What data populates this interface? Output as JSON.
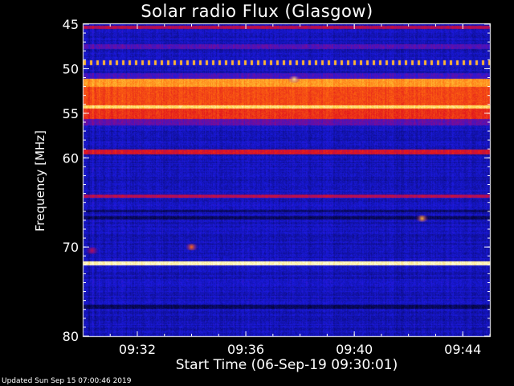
{
  "page": {
    "title": "Solar radio Flux (Glasgow)",
    "footer": "Updated Sun Sep 15 07:00:46 2019"
  },
  "chart_data": {
    "type": "heatmap",
    "title": "Solar radio Flux (Glasgow)",
    "xlabel": "Start Time (06-Sep-19 09:30:01)",
    "ylabel": "Frequency [MHz]",
    "x_unit": "time (HH:MM)",
    "xlim": [
      "09:30:01",
      "09:45:00"
    ],
    "ylim": [
      45,
      80
    ],
    "y_axis_inverted": true,
    "x_ticks": [
      "09:32",
      "09:36",
      "09:40",
      "09:44"
    ],
    "y_ticks": [
      45,
      50,
      55,
      60,
      70,
      80
    ],
    "y_tick_labels": [
      "45",
      "50",
      "55",
      "60",
      "70",
      "80"
    ],
    "colormap": [
      "#000000",
      "#0a0a6e",
      "#1a1ae0",
      "#8a0a8a",
      "#e0141e",
      "#ff6a10",
      "#ffd23c",
      "#ffffe0"
    ],
    "background_level": 0.24,
    "bands": [
      {
        "freq_from": 45.2,
        "freq_to": 45.5,
        "level": 0.5
      },
      {
        "freq_from": 47.3,
        "freq_to": 47.8,
        "level": 0.36
      },
      {
        "freq_from": 49.1,
        "freq_to": 49.6,
        "level": 0.6,
        "pattern": "dotted"
      },
      {
        "freq_from": 50.5,
        "freq_to": 51.1,
        "level": 0.34
      },
      {
        "freq_from": 51.1,
        "freq_to": 52.0,
        "level": 0.78
      },
      {
        "freq_from": 52.0,
        "freq_to": 54.1,
        "level": 0.66
      },
      {
        "freq_from": 54.1,
        "freq_to": 54.5,
        "level": 0.9
      },
      {
        "freq_from": 54.5,
        "freq_to": 55.6,
        "level": 0.62
      },
      {
        "freq_from": 55.6,
        "freq_to": 56.4,
        "level": 0.38
      },
      {
        "freq_from": 59.1,
        "freq_to": 59.6,
        "level": 0.56
      },
      {
        "freq_from": 64.1,
        "freq_to": 64.5,
        "level": 0.5
      },
      {
        "freq_from": 65.8,
        "freq_to": 66.1,
        "level": 0.14
      },
      {
        "freq_from": 66.6,
        "freq_to": 66.9,
        "level": 0.12
      },
      {
        "freq_from": 71.6,
        "freq_to": 72.1,
        "level": 0.97
      },
      {
        "freq_from": 76.5,
        "freq_to": 76.9,
        "level": 0.12
      }
    ],
    "bursts": [
      {
        "time": "09:34:00",
        "freq": 70.0,
        "level": 0.72
      },
      {
        "time": "09:42:30",
        "freq": 66.8,
        "level": 0.82
      },
      {
        "time": "09:37:47",
        "freq": 51.2,
        "level": 0.92
      },
      {
        "time": "09:30:20",
        "freq": 70.4,
        "level": 0.5
      }
    ]
  }
}
